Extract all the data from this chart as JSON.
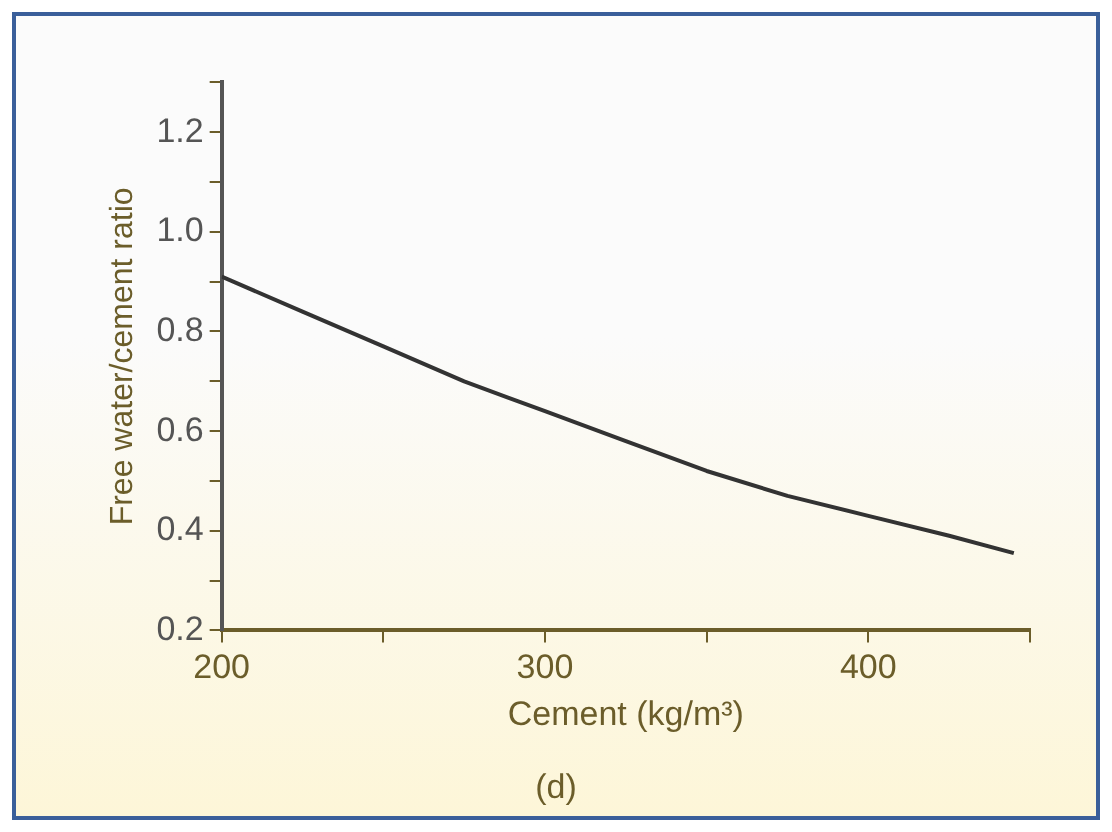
{
  "chart_data": {
    "type": "line",
    "xlabel": "Cement (kg/m³)",
    "ylabel": "Free water/cement ratio",
    "annotations": [
      "(d)"
    ],
    "x": [
      200,
      225,
      250,
      275,
      300,
      325,
      350,
      375,
      400,
      425,
      445
    ],
    "series": [
      {
        "color": "#333333",
        "values": [
          0.91,
          0.84,
          0.77,
          0.7,
          0.64,
          0.58,
          0.52,
          0.47,
          0.43,
          0.39,
          0.355
        ]
      }
    ],
    "xlim": [
      200,
      450
    ],
    "xticks": [
      200,
      {
        "value": 250,
        "label": null
      },
      300,
      {
        "value": 350,
        "label": null
      },
      400,
      {
        "value": 450,
        "label": null
      }
    ],
    "ylim": [
      0.2,
      1.3
    ],
    "yticks": [
      {
        "value": 0.2,
        "label": "0.2"
      },
      {
        "value": 0.3,
        "label": null
      },
      {
        "value": 0.4,
        "label": "0.4"
      },
      {
        "value": 0.5,
        "label": null
      },
      {
        "value": 0.6,
        "label": "0.6"
      },
      {
        "value": 0.7,
        "label": null
      },
      {
        "value": 0.8,
        "label": "0.8"
      },
      {
        "value": 0.9,
        "label": null
      },
      {
        "value": 1.0,
        "label": "1.0"
      },
      {
        "value": 1.1,
        "label": null
      },
      {
        "value": 1.2,
        "label": "1.2"
      },
      {
        "value": 1.3,
        "label": null
      }
    ],
    "grid": false,
    "legend": false,
    "marker": "none",
    "line_style": "solid"
  }
}
